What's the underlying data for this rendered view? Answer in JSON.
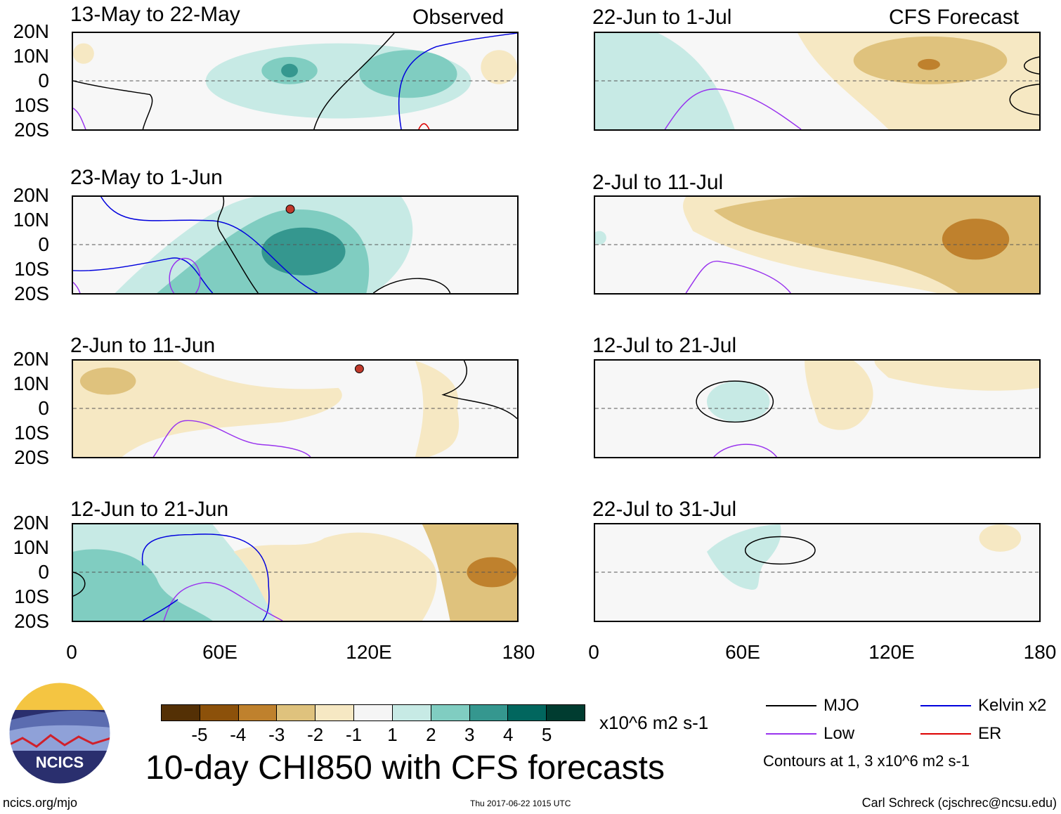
{
  "left_column_tag": "Observed",
  "right_column_tag": "CFS Forecast",
  "panels": [
    {
      "title": "13-May to 22-May"
    },
    {
      "title": "23-May to 1-Jun"
    },
    {
      "title": "2-Jun to 11-Jun"
    },
    {
      "title": "12-Jun to 21-Jun"
    },
    {
      "title": "22-Jun to 1-Jul"
    },
    {
      "title": "2-Jul to 11-Jul"
    },
    {
      "title": "12-Jul to 21-Jul"
    },
    {
      "title": "22-Jul to 31-Jul"
    }
  ],
  "lat_labels": [
    "20N",
    "10N",
    "0",
    "10S",
    "20S"
  ],
  "lon_labels": [
    "0",
    "60E",
    "120E",
    "180"
  ],
  "colorbar": {
    "levels": [
      "-5",
      "-4",
      "-3",
      "-2",
      "-1",
      "1",
      "2",
      "3",
      "4",
      "5"
    ],
    "colors": [
      "#543005",
      "#8c510a",
      "#bf812d",
      "#dfc27d",
      "#f6e8c3",
      "#f5f5f5",
      "#c7eae5",
      "#80cdc1",
      "#35978f",
      "#01665e",
      "#003c30"
    ],
    "units": "x10^6 m2 s-1"
  },
  "title": "10-day CHI850 with CFS forecasts",
  "legend": {
    "items": [
      {
        "label": "MJO",
        "color": "#000000"
      },
      {
        "label": "Kelvin x2",
        "color": "#0000dd"
      },
      {
        "label": "Low",
        "color": "#9933ee"
      },
      {
        "label": "ER",
        "color": "#dd0000"
      }
    ],
    "contour_note": "Contours at 1, 3 x10^6 m2 s-1"
  },
  "logo_text": "NCICS",
  "site": "ncics.org/mjo",
  "timestamp": "Thu 2017-06-22 1015 UTC",
  "author": "Carl Schreck (cjschrec@ncsu.edu)"
}
